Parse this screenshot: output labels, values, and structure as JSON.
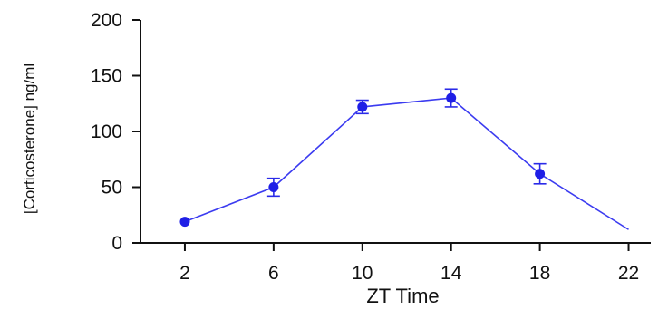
{
  "chart_data": {
    "type": "line",
    "xlabel": "ZT Time",
    "ylabel": "[Corticosterone] ng/ml",
    "x": [
      2,
      6,
      10,
      14,
      18,
      22
    ],
    "x_ticks": [
      "2",
      "6",
      "10",
      "14",
      "18",
      "22"
    ],
    "y_ticks": [
      "0",
      "50",
      "100",
      "150",
      "200"
    ],
    "xlim": [
      0,
      23
    ],
    "ylim": [
      0,
      200
    ],
    "grid": false,
    "series": [
      {
        "values": [
          19,
          50,
          122,
          130,
          62,
          12
        ],
        "error": [
          0,
          8,
          6,
          8,
          9,
          0
        ],
        "markers": [
          true,
          true,
          true,
          true,
          true,
          false
        ],
        "color": "#1f1fe6"
      }
    ]
  }
}
